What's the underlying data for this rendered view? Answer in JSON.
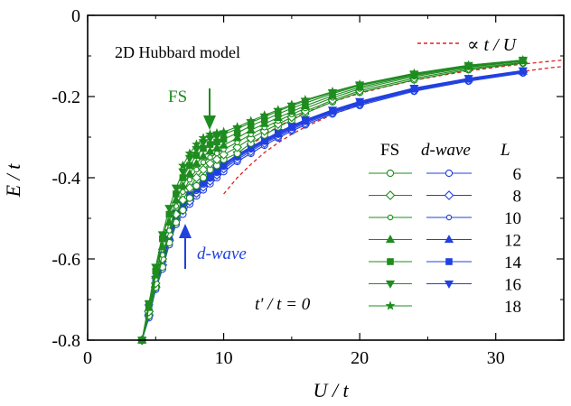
{
  "chart_data": {
    "type": "line",
    "title": "",
    "xlabel": "U / t",
    "ylabel": "E / t",
    "xlim": [
      0,
      35
    ],
    "ylim": [
      -0.8,
      0
    ],
    "x_ticks": [
      "0",
      "10",
      "20",
      "30"
    ],
    "y_ticks": [
      "0",
      "-0.2",
      "-0.4",
      "-0.6",
      "-0.8"
    ],
    "grid": false,
    "colors": {
      "fs": "#1e8c1e",
      "dwave": "#2040e0",
      "asymptote": "#e02020"
    },
    "annotations": {
      "model_label": "2D Hubbard model",
      "fs_arrow_label": "FS",
      "dwave_arrow_label": "d-wave",
      "tprime_label": "t' / t = 0",
      "asymptote_label": "∝ t / U"
    },
    "legend": {
      "placement": "right",
      "header_fs": "FS",
      "header_dwave": "d-wave",
      "header_L": "L",
      "L_values": [
        "6",
        "8",
        "10",
        "12",
        "14",
        "16",
        "18"
      ]
    },
    "series": [
      {
        "name": "FS",
        "L": "6",
        "marker": "circle-open",
        "x": [
          4,
          4.5,
          5,
          5.5,
          6,
          6.5,
          7,
          7.5,
          8,
          8.5,
          9,
          9.5,
          10,
          11,
          12,
          13,
          14,
          15,
          16,
          18,
          20,
          24,
          28,
          32
        ],
        "y": [
          -0.8,
          -0.74,
          -0.67,
          -0.62,
          -0.56,
          -0.51,
          -0.48,
          -0.45,
          -0.42,
          -0.4,
          -0.38,
          -0.37,
          -0.355,
          -0.34,
          -0.315,
          -0.295,
          -0.275,
          -0.258,
          -0.241,
          -0.213,
          -0.19,
          -0.159,
          -0.134,
          -0.118
        ]
      },
      {
        "name": "FS",
        "L": "8",
        "marker": "diamond-open",
        "x": [
          4,
          4.5,
          5,
          5.5,
          6,
          6.5,
          7,
          7.5,
          8,
          8.5,
          9,
          9.5,
          10,
          11,
          12,
          13,
          14,
          15,
          16,
          18,
          20,
          24,
          28,
          32
        ],
        "y": [
          -0.8,
          -0.73,
          -0.66,
          -0.6,
          -0.54,
          -0.49,
          -0.455,
          -0.425,
          -0.4,
          -0.38,
          -0.365,
          -0.355,
          -0.343,
          -0.325,
          -0.303,
          -0.285,
          -0.268,
          -0.251,
          -0.236,
          -0.209,
          -0.186,
          -0.155,
          -0.131,
          -0.116
        ]
      },
      {
        "name": "FS",
        "L": "10",
        "marker": "circle-open-small",
        "x": [
          4,
          4.5,
          5,
          5.5,
          6,
          6.5,
          7,
          7.5,
          8,
          8.5,
          9,
          9.5,
          10,
          11,
          12,
          13,
          14,
          15,
          16,
          18,
          20,
          24,
          28,
          32
        ],
        "y": [
          -0.8,
          -0.72,
          -0.65,
          -0.59,
          -0.53,
          -0.47,
          -0.435,
          -0.405,
          -0.38,
          -0.362,
          -0.35,
          -0.34,
          -0.33,
          -0.313,
          -0.293,
          -0.276,
          -0.26,
          -0.244,
          -0.229,
          -0.203,
          -0.181,
          -0.151,
          -0.128,
          -0.113
        ]
      },
      {
        "name": "FS",
        "L": "12",
        "marker": "triangle-up",
        "x": [
          4,
          4.5,
          5,
          5.5,
          6,
          6.5,
          7,
          7.5,
          8,
          8.5,
          9,
          9.5,
          10,
          11,
          12,
          13,
          14,
          15,
          16,
          18,
          20,
          24,
          28,
          32
        ],
        "y": [
          -0.8,
          -0.72,
          -0.64,
          -0.57,
          -0.51,
          -0.455,
          -0.42,
          -0.39,
          -0.365,
          -0.347,
          -0.335,
          -0.327,
          -0.32,
          -0.302,
          -0.283,
          -0.267,
          -0.252,
          -0.237,
          -0.223,
          -0.198,
          -0.177,
          -0.148,
          -0.126,
          -0.112
        ]
      },
      {
        "name": "FS",
        "L": "14",
        "marker": "square",
        "x": [
          4,
          4.5,
          5,
          5.5,
          6,
          6.5,
          7,
          7.5,
          8,
          8.5,
          9,
          9.5,
          10,
          11,
          12,
          13,
          14,
          15,
          16,
          18,
          20,
          24,
          28,
          32
        ],
        "y": [
          -0.8,
          -0.71,
          -0.63,
          -0.55,
          -0.49,
          -0.44,
          -0.4,
          -0.37,
          -0.345,
          -0.328,
          -0.318,
          -0.312,
          -0.305,
          -0.29,
          -0.272,
          -0.258,
          -0.243,
          -0.229,
          -0.216,
          -0.193,
          -0.173,
          -0.146,
          -0.124,
          -0.111
        ]
      },
      {
        "name": "FS",
        "L": "16",
        "marker": "triangle-down",
        "x": [
          4,
          4.5,
          5,
          5.5,
          6,
          6.5,
          7,
          7.5,
          8,
          8.5,
          9,
          9.5,
          10,
          11,
          12,
          13,
          14,
          15,
          16,
          18,
          20,
          24,
          28,
          32
        ],
        "y": [
          -0.8,
          -0.71,
          -0.62,
          -0.54,
          -0.475,
          -0.425,
          -0.385,
          -0.352,
          -0.33,
          -0.313,
          -0.303,
          -0.298,
          -0.293,
          -0.28,
          -0.264,
          -0.25,
          -0.236,
          -0.223,
          -0.211,
          -0.19,
          -0.171,
          -0.144,
          -0.123,
          -0.11
        ]
      },
      {
        "name": "FS",
        "L": "18",
        "marker": "star",
        "x": [
          7,
          7.5,
          8,
          8.5,
          9,
          9.5,
          10,
          11,
          12,
          13,
          14,
          15,
          16,
          18,
          20,
          24,
          28,
          32
        ],
        "y": [
          -0.37,
          -0.34,
          -0.318,
          -0.302,
          -0.293,
          -0.29,
          -0.287,
          -0.275,
          -0.26,
          -0.246,
          -0.233,
          -0.22,
          -0.208,
          -0.188,
          -0.17,
          -0.143,
          -0.123,
          -0.11
        ]
      },
      {
        "name": "d-wave",
        "L": "6",
        "marker": "circle-open",
        "x": [
          4,
          4.5,
          5,
          5.5,
          6,
          6.5,
          7,
          7.5,
          8,
          8.5,
          9,
          9.5,
          10,
          11,
          12,
          13,
          14,
          15,
          16,
          18,
          20,
          24,
          28,
          32
        ],
        "y": [
          -0.8,
          -0.745,
          -0.675,
          -0.625,
          -0.565,
          -0.515,
          -0.49,
          -0.465,
          -0.445,
          -0.43,
          -0.415,
          -0.4,
          -0.385,
          -0.36,
          -0.34,
          -0.32,
          -0.302,
          -0.285,
          -0.27,
          -0.243,
          -0.222,
          -0.187,
          -0.162,
          -0.142
        ]
      },
      {
        "name": "d-wave",
        "L": "8",
        "marker": "diamond-open",
        "x": [
          4,
          4.5,
          5,
          5.5,
          6,
          6.5,
          7,
          7.5,
          8,
          8.5,
          9,
          9.5,
          10,
          11,
          12,
          13,
          14,
          15,
          16,
          18,
          20,
          24,
          28,
          32
        ],
        "y": [
          -0.8,
          -0.74,
          -0.67,
          -0.615,
          -0.555,
          -0.505,
          -0.48,
          -0.458,
          -0.438,
          -0.423,
          -0.408,
          -0.393,
          -0.378,
          -0.355,
          -0.335,
          -0.315,
          -0.298,
          -0.281,
          -0.266,
          -0.24,
          -0.219,
          -0.185,
          -0.16,
          -0.14
        ]
      },
      {
        "name": "d-wave",
        "L": "10",
        "marker": "circle-open-small",
        "x": [
          4,
          4.5,
          5,
          5.5,
          6,
          6.5,
          7,
          7.5,
          8,
          8.5,
          9,
          9.5,
          10,
          11,
          12,
          13,
          14,
          15,
          16,
          18,
          20,
          24,
          28,
          32
        ],
        "y": [
          -0.8,
          -0.735,
          -0.665,
          -0.61,
          -0.55,
          -0.5,
          -0.474,
          -0.452,
          -0.433,
          -0.418,
          -0.403,
          -0.389,
          -0.374,
          -0.351,
          -0.331,
          -0.312,
          -0.295,
          -0.278,
          -0.263,
          -0.238,
          -0.217,
          -0.183,
          -0.158,
          -0.139
        ]
      },
      {
        "name": "d-wave",
        "L": "12",
        "marker": "triangle-up",
        "x": [
          4,
          4.5,
          5,
          5.5,
          6,
          6.5,
          7,
          7.5,
          8,
          8.5,
          9,
          9.5,
          10,
          11,
          12,
          13,
          14,
          15,
          16,
          18,
          20,
          24,
          28,
          32
        ],
        "y": [
          -0.8,
          -0.73,
          -0.66,
          -0.6,
          -0.545,
          -0.495,
          -0.47,
          -0.448,
          -0.429,
          -0.414,
          -0.4,
          -0.386,
          -0.371,
          -0.348,
          -0.328,
          -0.31,
          -0.292,
          -0.276,
          -0.261,
          -0.236,
          -0.215,
          -0.181,
          -0.157,
          -0.138
        ]
      },
      {
        "name": "d-wave",
        "L": "14",
        "marker": "square",
        "x": [
          4,
          4.5,
          5,
          5.5,
          6,
          6.5,
          7,
          7.5,
          8,
          8.5,
          9,
          9.5,
          10,
          11,
          12,
          13,
          14,
          15,
          16,
          18,
          20,
          24,
          28,
          32
        ],
        "y": [
          -0.8,
          -0.725,
          -0.655,
          -0.595,
          -0.54,
          -0.49,
          -0.466,
          -0.445,
          -0.426,
          -0.411,
          -0.397,
          -0.383,
          -0.368,
          -0.345,
          -0.326,
          -0.308,
          -0.29,
          -0.274,
          -0.259,
          -0.234,
          -0.213,
          -0.18,
          -0.156,
          -0.137
        ]
      },
      {
        "name": "d-wave",
        "L": "16",
        "marker": "triangle-down",
        "x": [
          4,
          4.5,
          5,
          5.5,
          6,
          6.5,
          7,
          7.5,
          8,
          8.5,
          9,
          9.5,
          10,
          11,
          12,
          13,
          14,
          15,
          16,
          18,
          20,
          24,
          28,
          32
        ],
        "y": [
          -0.8,
          -0.72,
          -0.65,
          -0.59,
          -0.535,
          -0.487,
          -0.463,
          -0.442,
          -0.423,
          -0.408,
          -0.394,
          -0.38,
          -0.366,
          -0.343,
          -0.324,
          -0.306,
          -0.288,
          -0.272,
          -0.257,
          -0.233,
          -0.212,
          -0.179,
          -0.155,
          -0.136
        ]
      },
      {
        "name": "∝ t / U",
        "marker": "none",
        "dashed": true,
        "x": [
          10,
          11,
          12,
          13,
          14,
          15,
          16,
          18,
          20,
          22,
          24,
          26,
          28,
          30,
          32,
          34,
          35
        ],
        "y": [
          -0.44,
          -0.4,
          -0.367,
          -0.338,
          -0.314,
          -0.293,
          -0.275,
          -0.244,
          -0.22,
          -0.2,
          -0.183,
          -0.169,
          -0.157,
          -0.147,
          -0.138,
          -0.129,
          -0.126
        ]
      },
      {
        "name": "∝ t / U",
        "marker": "none",
        "dashed": true,
        "x": [
          12,
          13,
          14,
          15,
          16,
          18,
          20,
          22,
          24,
          26,
          28,
          30,
          32,
          34,
          35
        ],
        "y": [
          -0.32,
          -0.295,
          -0.274,
          -0.256,
          -0.24,
          -0.213,
          -0.192,
          -0.175,
          -0.16,
          -0.148,
          -0.137,
          -0.128,
          -0.12,
          -0.113,
          -0.11
        ]
      }
    ]
  }
}
